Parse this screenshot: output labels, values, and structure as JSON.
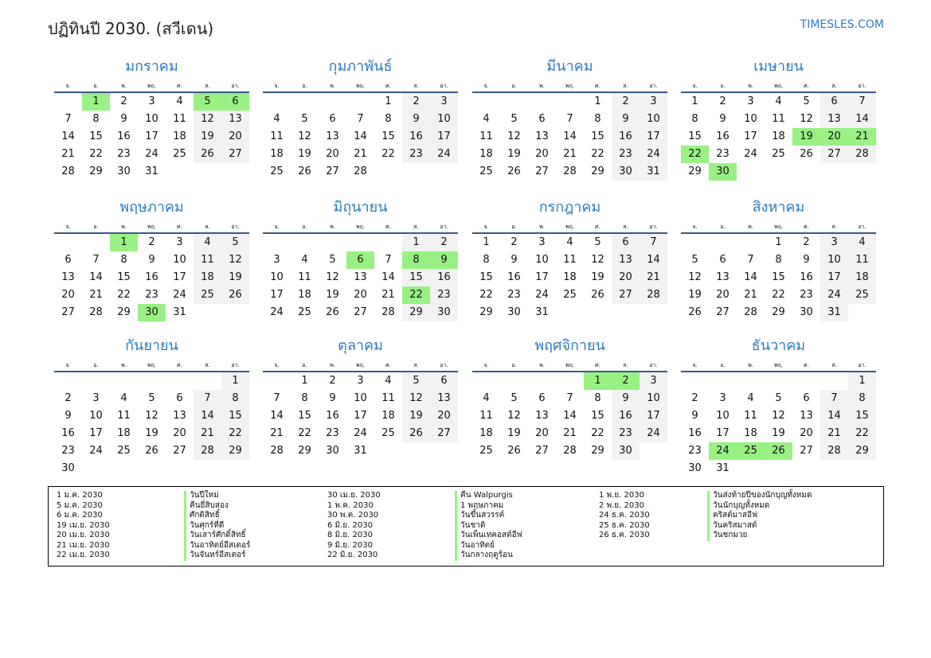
{
  "title": "ปฏิทินปี 2030. (สวีเดน)",
  "brand": "TIMESLES.COM",
  "weekdays": [
    "จ.",
    "อ.",
    "พ.",
    "พฤ.",
    "ศ.",
    "ส.",
    "อา."
  ],
  "colors": {
    "accent": "#2a7bc0",
    "holiday": "#99f184",
    "weekend": "#f2f2f2"
  },
  "months": [
    {
      "name": "มกราคม",
      "first_weekday": 1,
      "days": 31,
      "holidays": [
        1,
        5,
        6
      ]
    },
    {
      "name": "กุมภาพันธ์",
      "first_weekday": 4,
      "days": 28,
      "holidays": []
    },
    {
      "name": "มีนาคม",
      "first_weekday": 4,
      "days": 31,
      "holidays": []
    },
    {
      "name": "เมษายน",
      "first_weekday": 0,
      "days": 30,
      "holidays": [
        19,
        20,
        21,
        22,
        30
      ]
    },
    {
      "name": "พฤษภาคม",
      "first_weekday": 2,
      "days": 31,
      "holidays": [
        1,
        30
      ]
    },
    {
      "name": "มิถุนายน",
      "first_weekday": 5,
      "days": 30,
      "holidays": [
        6,
        8,
        9,
        22
      ]
    },
    {
      "name": "กรกฎาคม",
      "first_weekday": 0,
      "days": 31,
      "holidays": []
    },
    {
      "name": "สิงหาคม",
      "first_weekday": 3,
      "days": 31,
      "holidays": []
    },
    {
      "name": "กันยายน",
      "first_weekday": 6,
      "days": 30,
      "holidays": []
    },
    {
      "name": "ตุลาคม",
      "first_weekday": 1,
      "days": 31,
      "holidays": []
    },
    {
      "name": "พฤศจิกายน",
      "first_weekday": 4,
      "days": 30,
      "holidays": [
        1,
        2
      ]
    },
    {
      "name": "ธันวาคม",
      "first_weekday": 6,
      "days": 31,
      "holidays": [
        24,
        25,
        26
      ]
    }
  ],
  "legend": [
    {
      "date": "1 ม.ค. 2030",
      "name": "วันปีใหม่"
    },
    {
      "date": "5 ม.ค. 2030",
      "name": "คืนยี่สิบสอง"
    },
    {
      "date": "6 ม.ค. 2030",
      "name": "ศักดิสิทธิ์"
    },
    {
      "date": "19 เม.ย. 2030",
      "name": "วันศุกร์ที่ดี"
    },
    {
      "date": "20 เม.ย. 2030",
      "name": "วันเสาร์ศักดิ์สิทธิ์"
    },
    {
      "date": "21 เม.ย. 2030",
      "name": "วันอาทิตย์อีสเตอร์"
    },
    {
      "date": "22 เม.ย. 2030",
      "name": "วันจันทร์อีสเตอร์"
    },
    {
      "date": "30 เม.ย. 2030",
      "name": "คืน Walpurgis"
    },
    {
      "date": "1 พ.ค. 2030",
      "name": "1 พฤษภาคม"
    },
    {
      "date": "30 พ.ค. 2030",
      "name": "วันขึ้นสวรรค์"
    },
    {
      "date": "6 มิ.ย. 2030",
      "name": "วันชาติ"
    },
    {
      "date": "8 มิ.ย. 2030",
      "name": "วันเพ็นเทคอสต์อีฟ"
    },
    {
      "date": "9 มิ.ย. 2030",
      "name": "วันอาทิตย์"
    },
    {
      "date": "22 มิ.ย. 2030",
      "name": "วันกลางฤดูร้อน"
    },
    {
      "date": "1 พ.ย. 2030",
      "name": "วันส่งท้ายปีของนักบุญทั้งหมด"
    },
    {
      "date": "2 พ.ย. 2030",
      "name": "วันนักบุญทั้งหมด"
    },
    {
      "date": "24 ธ.ค. 2030",
      "name": "คริสต์มาสอีฟ"
    },
    {
      "date": "25 ธ.ค. 2030",
      "name": "วันคริสมาสต์"
    },
    {
      "date": "26 ธ.ค. 2030",
      "name": "วันชกมวย"
    }
  ]
}
